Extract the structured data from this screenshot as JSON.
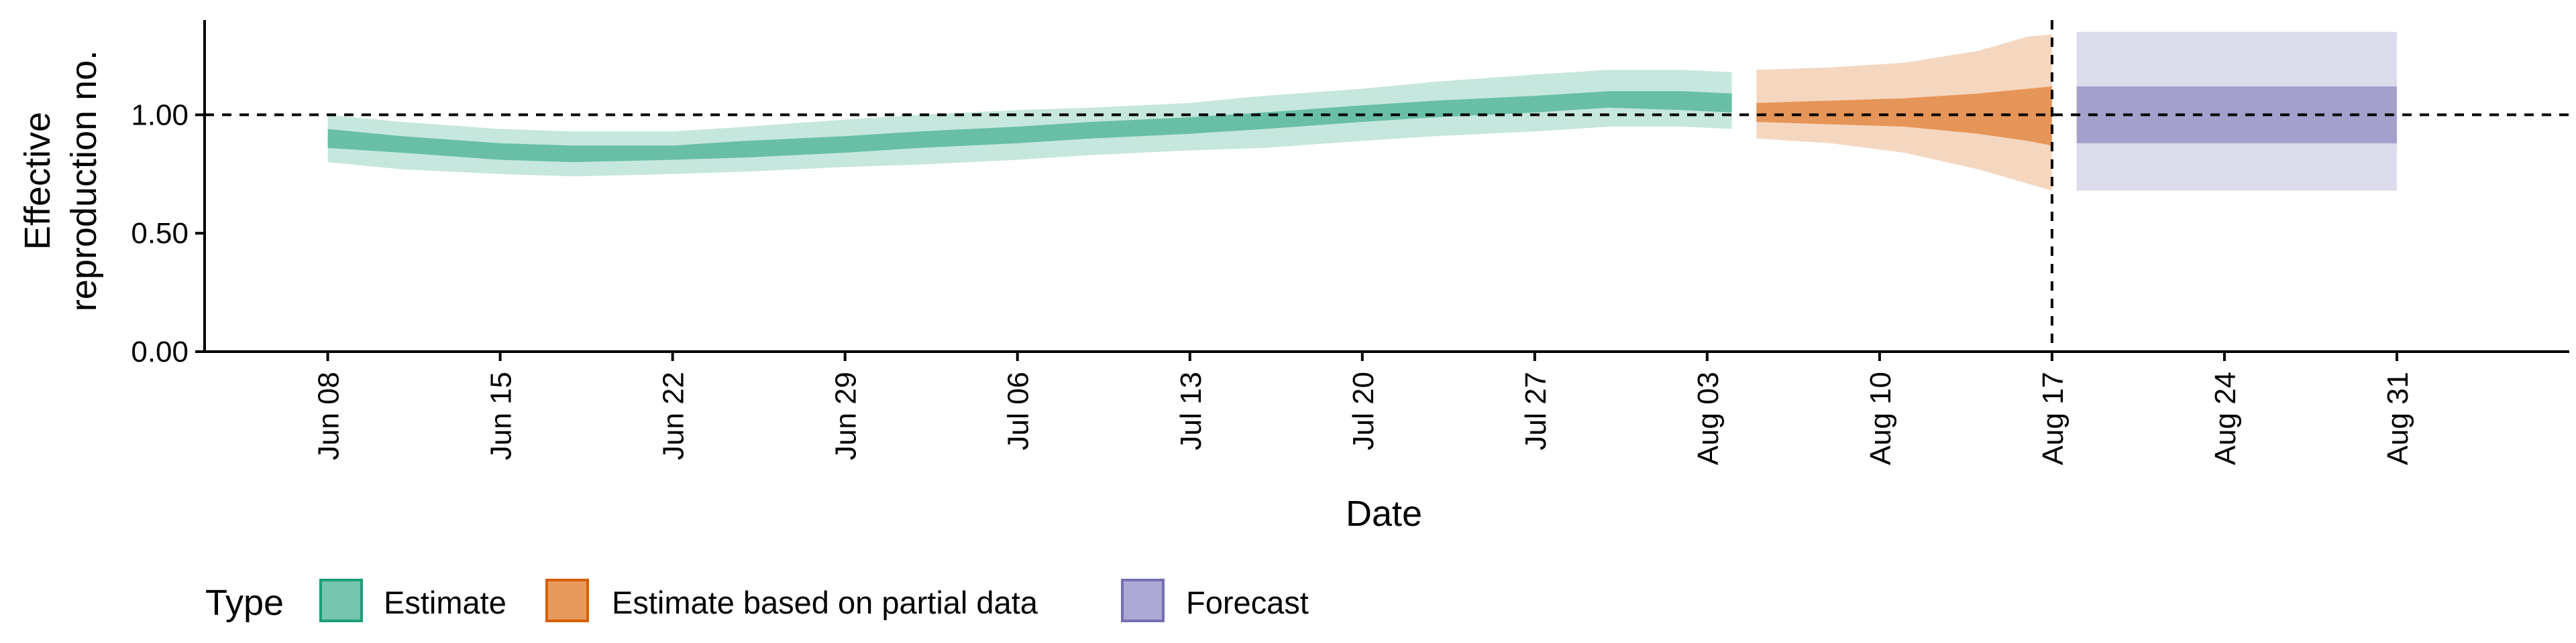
{
  "chart_data": {
    "type": "area",
    "xlabel": "Date",
    "ylabel_lines": [
      "Effective",
      "reproduction no."
    ],
    "ylim": [
      0,
      1.4
    ],
    "y_ticks": [
      0,
      0.5,
      1,
      1.5
    ],
    "y_tick_labels": [
      "0.00",
      "0.50",
      "1.00",
      ""
    ],
    "x_range": [
      "2020-06-03",
      "2020-09-07"
    ],
    "x_ticks": [
      "2020-06-08",
      "2020-06-15",
      "2020-06-22",
      "2020-06-29",
      "2020-07-06",
      "2020-07-13",
      "2020-07-20",
      "2020-07-27",
      "2020-08-03",
      "2020-08-10",
      "2020-08-17",
      "2020-08-24",
      "2020-08-31"
    ],
    "x_tick_labels": [
      "Jun 08",
      "Jun 15",
      "Jun 22",
      "Jun 29",
      "Jul 06",
      "Jul 13",
      "Jul 20",
      "Jul 27",
      "Aug 03",
      "Aug 10",
      "Aug 17",
      "Aug 24",
      "Aug 31"
    ],
    "reference_hline": 1.0,
    "reference_vline": "2020-08-17",
    "grid": false,
    "legend_position": "bottom-left",
    "colors": {
      "estimate": "#1b9e77",
      "partial": "#d95f02",
      "forecast": "#7570b3"
    },
    "legend": {
      "title": "Type",
      "entries": [
        {
          "key": "estimate",
          "label": "Estimate"
        },
        {
          "key": "partial",
          "label": "Estimate based on partial data"
        },
        {
          "key": "forecast",
          "label": "Forecast"
        }
      ]
    },
    "series": [
      {
        "key": "estimate",
        "step": false,
        "points": [
          {
            "date": "2020-06-08",
            "lo90": 0.8,
            "lo50": 0.86,
            "hi50": 0.94,
            "hi90": 1.0
          },
          {
            "date": "2020-06-11",
            "lo90": 0.77,
            "lo50": 0.84,
            "hi50": 0.91,
            "hi90": 0.97
          },
          {
            "date": "2020-06-15",
            "lo90": 0.75,
            "lo50": 0.81,
            "hi50": 0.88,
            "hi90": 0.94
          },
          {
            "date": "2020-06-18",
            "lo90": 0.74,
            "lo50": 0.8,
            "hi50": 0.87,
            "hi90": 0.93
          },
          {
            "date": "2020-06-22",
            "lo90": 0.75,
            "lo50": 0.81,
            "hi50": 0.87,
            "hi90": 0.93
          },
          {
            "date": "2020-06-25",
            "lo90": 0.76,
            "lo50": 0.82,
            "hi50": 0.89,
            "hi90": 0.95
          },
          {
            "date": "2020-06-29",
            "lo90": 0.78,
            "lo50": 0.84,
            "hi50": 0.91,
            "hi90": 0.98
          },
          {
            "date": "2020-07-02",
            "lo90": 0.79,
            "lo50": 0.86,
            "hi50": 0.93,
            "hi90": 1.0
          },
          {
            "date": "2020-07-06",
            "lo90": 0.81,
            "lo50": 0.88,
            "hi50": 0.95,
            "hi90": 1.02
          },
          {
            "date": "2020-07-09",
            "lo90": 0.83,
            "lo50": 0.9,
            "hi50": 0.97,
            "hi90": 1.03
          },
          {
            "date": "2020-07-13",
            "lo90": 0.85,
            "lo50": 0.92,
            "hi50": 0.99,
            "hi90": 1.05
          },
          {
            "date": "2020-07-16",
            "lo90": 0.86,
            "lo50": 0.94,
            "hi50": 1.01,
            "hi90": 1.08
          },
          {
            "date": "2020-07-20",
            "lo90": 0.89,
            "lo50": 0.97,
            "hi50": 1.04,
            "hi90": 1.11
          },
          {
            "date": "2020-07-23",
            "lo90": 0.91,
            "lo50": 0.99,
            "hi50": 1.06,
            "hi90": 1.14
          },
          {
            "date": "2020-07-27",
            "lo90": 0.93,
            "lo50": 1.01,
            "hi50": 1.08,
            "hi90": 1.17
          },
          {
            "date": "2020-07-30",
            "lo90": 0.95,
            "lo50": 1.03,
            "hi50": 1.1,
            "hi90": 1.19
          },
          {
            "date": "2020-08-02",
            "lo90": 0.95,
            "lo50": 1.02,
            "hi50": 1.1,
            "hi90": 1.19
          },
          {
            "date": "2020-08-04",
            "lo90": 0.94,
            "lo50": 1.01,
            "hi50": 1.09,
            "hi90": 1.18
          }
        ]
      },
      {
        "key": "partial",
        "step": false,
        "points": [
          {
            "date": "2020-08-05",
            "lo90": 0.9,
            "lo50": 0.97,
            "hi50": 1.05,
            "hi90": 1.19
          },
          {
            "date": "2020-08-08",
            "lo90": 0.88,
            "lo50": 0.96,
            "hi50": 1.06,
            "hi90": 1.2
          },
          {
            "date": "2020-08-11",
            "lo90": 0.84,
            "lo50": 0.95,
            "hi50": 1.07,
            "hi90": 1.22
          },
          {
            "date": "2020-08-14",
            "lo90": 0.77,
            "lo50": 0.92,
            "hi50": 1.09,
            "hi90": 1.27
          },
          {
            "date": "2020-08-16",
            "lo90": 0.71,
            "lo50": 0.89,
            "hi50": 1.11,
            "hi90": 1.33
          },
          {
            "date": "2020-08-17",
            "lo90": 0.68,
            "lo50": 0.87,
            "hi50": 1.12,
            "hi90": 1.34
          }
        ]
      },
      {
        "key": "forecast",
        "step": true,
        "points": [
          {
            "date": "2020-08-18",
            "lo90": 0.68,
            "lo50": 0.88,
            "hi50": 1.12,
            "hi90": 1.35
          },
          {
            "date": "2020-08-31",
            "lo90": 0.68,
            "lo50": 0.88,
            "hi50": 1.12,
            "hi90": 1.35
          }
        ]
      }
    ]
  }
}
